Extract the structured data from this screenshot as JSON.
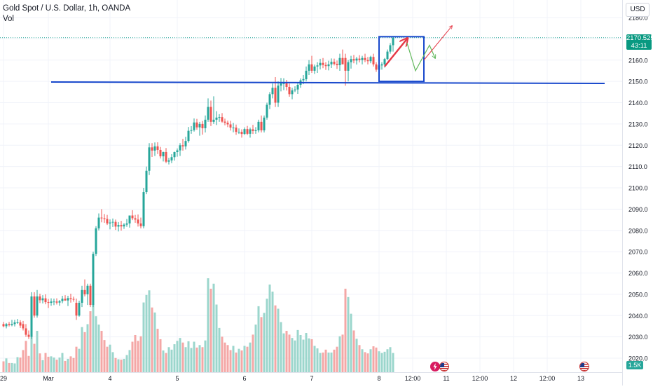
{
  "legend": {
    "title": "Gold Spot / U.S. Dollar, 1h, OANDA",
    "volume_label": "Vol"
  },
  "currency_button": "USD",
  "price_tag": {
    "price": "2170.525",
    "countdown": "43:11",
    "color": "#089981"
  },
  "volume_tag": "1.5K",
  "colors": {
    "up": "#26a69a",
    "down": "#ef5350",
    "vol_up": "#9bd6cc",
    "vol_down": "#f4a7a6",
    "support_line": "#1848cc",
    "box": "#1848cc",
    "arrow_up": "#e53946",
    "arrow_zigzag": "#63b95e",
    "grid": "#f0f3fa",
    "axis_text": "#131722"
  },
  "icons": {
    "event_1": "lightning-icon",
    "event_2": "us-flag-icon",
    "event_3": "us-flag-icon"
  },
  "chart_data": {
    "type": "candlestick",
    "symbol": "XAUUSD",
    "timeframe": "1h",
    "y_ticks": [
      2020,
      2030,
      2040,
      2050,
      2060,
      2070,
      2080,
      2090,
      2100,
      2110,
      2120,
      2130,
      2140,
      2150,
      2160,
      2170,
      2180
    ],
    "ylim": [
      2016,
      2182
    ],
    "x_ticks": [
      {
        "label": "29",
        "t": 0
      },
      {
        "label": "Mar",
        "t": 16
      },
      {
        "label": "4",
        "t": 38
      },
      {
        "label": "5",
        "t": 62
      },
      {
        "label": "6",
        "t": 86
      },
      {
        "label": "7",
        "t": 110
      },
      {
        "label": "8",
        "t": 134
      },
      {
        "label": "12:00",
        "t": 146
      },
      {
        "label": "11",
        "t": 158
      },
      {
        "label": "12:00",
        "t": 170
      },
      {
        "label": "12",
        "t": 182
      },
      {
        "label": "12:00",
        "t": 194
      },
      {
        "label": "13",
        "t": 206
      }
    ],
    "current_price": 2170.525,
    "support_level": 2150.0,
    "range_box": {
      "t_start": 134,
      "t_end": 150,
      "price_low": 2150.0,
      "price_high": 2171.0
    },
    "projection_arrows": {
      "up_arrow": [
        [
          136,
          2157
        ],
        [
          144,
          2170
        ]
      ],
      "target_arrow": [
        [
          150,
          2160
        ],
        [
          160,
          2176
        ]
      ],
      "zigzag": [
        [
          144,
          2168
        ],
        [
          147,
          2155
        ],
        [
          152,
          2167
        ],
        [
          154,
          2161
        ]
      ]
    },
    "candles": [
      [
        2036.0,
        2037.0,
        2034.5,
        2035.0,
        2.6
      ],
      [
        2035.0,
        2036.5,
        2034.0,
        2036.0,
        3.3
      ],
      [
        2036.0,
        2037.0,
        2034.9,
        2035.5,
        2.2
      ],
      [
        2035.5,
        2038.0,
        2035.0,
        2036.0,
        2.2
      ],
      [
        2036.0,
        2038.0,
        2034.9,
        2036.8,
        2.1
      ],
      [
        2036.8,
        2038.4,
        2036.1,
        2036.8,
        3.6
      ],
      [
        2036.8,
        2037.8,
        2034.2,
        2035.3,
        3.5
      ],
      [
        2036.0,
        2037.5,
        2033.0,
        2034.0,
        5.3
      ],
      [
        2034.0,
        2036.0,
        2030.0,
        2031.0,
        7.5
      ],
      [
        2031.0,
        2033.0,
        2029.0,
        2030.0,
        3.9
      ],
      [
        2030.0,
        2051.0,
        2029.0,
        2049.0,
        10.0
      ],
      [
        2049.0,
        2051.0,
        2039.0,
        2040.0,
        6.8
      ],
      [
        2040.0,
        2052.0,
        2039.0,
        2049.0,
        9.9
      ],
      [
        2049.0,
        2050.3,
        2045.9,
        2047.2,
        4.5
      ],
      [
        2047.2,
        2049.6,
        2045.7,
        2048.1,
        2.9
      ],
      [
        2048.1,
        2050.0,
        2045.3,
        2046.3,
        4.6
      ],
      [
        2046.3,
        2047.8,
        2043.6,
        2046.0,
        3.7
      ],
      [
        2046.0,
        2048.1,
        2044.6,
        2046.6,
        3.8
      ],
      [
        2046.6,
        2048.0,
        2044.9,
        2046.6,
        3.5
      ],
      [
        2046.6,
        2048.1,
        2045.2,
        2046.1,
        3.0
      ],
      [
        2046.1,
        2047.3,
        2044.6,
        2046.8,
        3.5
      ],
      [
        2046.8,
        2049.3,
        2045.8,
        2047.9,
        4.6
      ],
      [
        2047.9,
        2049.6,
        2046.9,
        2047.1,
        2.7
      ],
      [
        2047.1,
        2049.3,
        2044.5,
        2048.2,
        3.2
      ],
      [
        2048.2,
        2050.3,
        2046.1,
        2047.8,
        3.8
      ],
      [
        2047.8,
        2048.9,
        2046.5,
        2047.7,
        3.4
      ],
      [
        2046.0,
        2048.0,
        2038.0,
        2040.0,
        6.1
      ],
      [
        2040.0,
        2047.0,
        2039.5,
        2046.0,
        5.6
      ],
      [
        2046.0,
        2054.0,
        2044.0,
        2052.0,
        10.8
      ],
      [
        2052.0,
        2057.0,
        2049.0,
        2050.0,
        9.6
      ],
      [
        2050.0,
        2055.0,
        2045.0,
        2054.0,
        11.5
      ],
      [
        2054.0,
        2055.0,
        2044.0,
        2045.0,
        14.6
      ],
      [
        2045.0,
        2070.0,
        2044.0,
        2069.0,
        17.4
      ],
      [
        2069.0,
        2082.0,
        2068.0,
        2081.0,
        13.4
      ],
      [
        2081.0,
        2088.0,
        2080.0,
        2086.0,
        11.4
      ],
      [
        2086.0,
        2090.0,
        2083.8,
        2085.7,
        9.9
      ],
      [
        2085.7,
        2087.7,
        2083.6,
        2085.4,
        7.7
      ],
      [
        2085.4,
        2087.3,
        2082.5,
        2083.3,
        6.1
      ],
      [
        2083.3,
        2085.2,
        2080.5,
        2083.7,
        6.6
      ],
      [
        2083.7,
        2085.6,
        2081.6,
        2084.0,
        4.8
      ],
      [
        2084.0,
        2085.1,
        2080.2,
        2081.8,
        3.4
      ],
      [
        2081.8,
        2083.9,
        2079.5,
        2082.5,
        3.1
      ],
      [
        2082.5,
        2084.5,
        2079.9,
        2081.9,
        3.0
      ],
      [
        2081.9,
        2083.4,
        2080.7,
        2082.7,
        3.2
      ],
      [
        2082.7,
        2085.4,
        2081.7,
        2083.3,
        4.1
      ],
      [
        2083.3,
        2085.8,
        2081.3,
        2087.0,
        5.3
      ],
      [
        2087.0,
        2089.5,
        2084.8,
        2085.7,
        7.3
      ],
      [
        2085.7,
        2087.3,
        2083.6,
        2085.1,
        8.9
      ],
      [
        2085.1,
        2087.5,
        2081.8,
        2083.3,
        7.5
      ],
      [
        2083.3,
        2086.0,
        2081.0,
        2082.0,
        8.6
      ],
      [
        2082.0,
        2100.0,
        2081.0,
        2098.0,
        16.7
      ],
      [
        2098.0,
        2110.0,
        2097.0,
        2108.0,
        18.5
      ],
      [
        2108.0,
        2121.0,
        2106.0,
        2119.0,
        19.6
      ],
      [
        2119.0,
        2121.0,
        2114.5,
        2117.5,
        15.5
      ],
      [
        2117.5,
        2121.3,
        2115.0,
        2119.5,
        14.3
      ],
      [
        2119.5,
        2121.4,
        2115.9,
        2117.8,
        10.4
      ],
      [
        2117.8,
        2119.2,
        2113.8,
        2114.8,
        7.9
      ],
      [
        2114.8,
        2117.0,
        2112.4,
        2116.8,
        5.2
      ],
      [
        2116.8,
        2118.7,
        2111.6,
        2112.3,
        4.6
      ],
      [
        2112.3,
        2114.1,
        2111.0,
        2112.9,
        6.0
      ],
      [
        2112.9,
        2115.8,
        2111.6,
        2114.4,
        5.4
      ],
      [
        2114.4,
        2117.0,
        2112.8,
        2116.8,
        6.7
      ],
      [
        2116.8,
        2118.5,
        2114.6,
        2117.6,
        7.5
      ],
      [
        2117.6,
        2121.0,
        2115.0,
        2120.0,
        8.2
      ],
      [
        2120.0,
        2123.0,
        2117.5,
        2119.5,
        7.1
      ],
      [
        2119.5,
        2124.0,
        2118.0,
        2122.0,
        6.0
      ],
      [
        2122.0,
        2128.6,
        2121.2,
        2126.8,
        7.4
      ],
      [
        2126.8,
        2129.0,
        2125.4,
        2127.1,
        5.8
      ],
      [
        2127.1,
        2132.6,
        2126.4,
        2130.7,
        7.3
      ],
      [
        2130.7,
        2132.4,
        2127.3,
        2128.4,
        5.9
      ],
      [
        2128.4,
        2131.0,
        2124.5,
        2130.0,
        6.5
      ],
      [
        2130.0,
        2131.4,
        2125.0,
        2128.0,
        6.0
      ],
      [
        2128.0,
        2134.0,
        2126.0,
        2132.0,
        7.6
      ],
      [
        2132.0,
        2142.0,
        2131.0,
        2138.0,
        22.5
      ],
      [
        2138.0,
        2141.0,
        2129.0,
        2131.0,
        20.0
      ],
      [
        2131.0,
        2143.0,
        2130.0,
        2132.0,
        21.2
      ],
      [
        2132.0,
        2136.0,
        2129.5,
        2133.0,
        16.2
      ],
      [
        2133.0,
        2134.6,
        2131.0,
        2133.2,
        10.6
      ],
      [
        2133.2,
        2135.1,
        2130.6,
        2131.1,
        8.5
      ],
      [
        2131.1,
        2132.5,
        2129.4,
        2130.6,
        7.1
      ],
      [
        2130.6,
        2131.6,
        2128.5,
        2129.8,
        6.5
      ],
      [
        2129.8,
        2131.5,
        2126.9,
        2128.3,
        5.3
      ],
      [
        2128.3,
        2130.5,
        2126.1,
        2128.3,
        6.3
      ],
      [
        2128.3,
        2129.7,
        2124.9,
        2126.3,
        4.7
      ],
      [
        2126.3,
        2127.9,
        2125.3,
        2126.3,
        5.6
      ],
      [
        2126.3,
        2127.5,
        2123.6,
        2125.3,
        5.2
      ],
      [
        2125.3,
        2128.4,
        2124.9,
        2127.6,
        6.3
      ],
      [
        2127.6,
        2129.1,
        2124.8,
        2125.4,
        6.1
      ],
      [
        2125.4,
        2128.3,
        2123.6,
        2127.5,
        7.1
      ],
      [
        2127.5,
        2129.6,
        2125.3,
        2126.7,
        9.0
      ],
      [
        2126.7,
        2128.5,
        2125.4,
        2127.0,
        11.4
      ],
      [
        2127.0,
        2132.0,
        2126.0,
        2131.0,
        15.8
      ],
      [
        2131.0,
        2134.0,
        2126.0,
        2127.0,
        13.2
      ],
      [
        2127.0,
        2134.0,
        2126.0,
        2133.0,
        14.2
      ],
      [
        2133.0,
        2140.0,
        2132.0,
        2139.0,
        17.6
      ],
      [
        2139.0,
        2145.0,
        2137.0,
        2144.0,
        21.0
      ],
      [
        2144.0,
        2149.0,
        2142.0,
        2147.0,
        19.3
      ],
      [
        2147.0,
        2152.0,
        2138.0,
        2140.0,
        16.0
      ],
      [
        2140.0,
        2150.0,
        2138.0,
        2148.0,
        15.2
      ],
      [
        2148.0,
        2151.6,
        2145.3,
        2149.1,
        12.0
      ],
      [
        2149.1,
        2151.5,
        2145.9,
        2149.1,
        9.3
      ],
      [
        2149.1,
        2150.7,
        2145.7,
        2147.4,
        9.9
      ],
      [
        2147.4,
        2149.0,
        2142.8,
        2144.0,
        9.0
      ],
      [
        2144.0,
        2147.0,
        2141.6,
        2145.8,
        8.2
      ],
      [
        2145.8,
        2147.7,
        2145.0,
        2146.2,
        7.6
      ],
      [
        2146.2,
        2149.1,
        2144.1,
        2148.4,
        10.1
      ],
      [
        2148.4,
        2151.4,
        2147.0,
        2150.5,
        8.9
      ],
      [
        2150.5,
        2153.0,
        2148.7,
        2151.1,
        7.8
      ],
      [
        2151.0,
        2157.0,
        2150.0,
        2155.0,
        9.4
      ],
      [
        2155.0,
        2160.0,
        2153.0,
        2158.0,
        8.1
      ],
      [
        2158.0,
        2162.0,
        2154.0,
        2155.0,
        7.9
      ],
      [
        2155.0,
        2157.9,
        2153.5,
        2157.0,
        6.3
      ],
      [
        2157.0,
        2159.0,
        2154.0,
        2157.5,
        5.7
      ],
      [
        2157.5,
        2160.6,
        2155.6,
        2158.7,
        4.6
      ],
      [
        2158.7,
        2161.0,
        2156.2,
        2157.7,
        4.7
      ],
      [
        2157.7,
        2159.0,
        2155.4,
        2157.2,
        5.4
      ],
      [
        2157.2,
        2159.7,
        2155.2,
        2158.0,
        4.7
      ],
      [
        2158.0,
        2160.8,
        2156.3,
        2159.2,
        4.7
      ],
      [
        2159.2,
        2160.7,
        2157.5,
        2158.2,
        5.4
      ],
      [
        2158.2,
        2159.8,
        2155.9,
        2157.6,
        6.1
      ],
      [
        2157.6,
        2163.0,
        2155.0,
        2161.0,
        8.6
      ],
      [
        2161.0,
        2165.0,
        2159.0,
        2158.0,
        9.0
      ],
      [
        2161.0,
        2163.0,
        2148.0,
        2155.0,
        20.0
      ],
      [
        2155.0,
        2160.0,
        2150.0,
        2159.0,
        18.0
      ],
      [
        2159.0,
        2162.0,
        2156.0,
        2160.5,
        14.0
      ],
      [
        2160.5,
        2162.4,
        2158.5,
        2159.8,
        10.0
      ],
      [
        2159.8,
        2161.5,
        2157.9,
        2160.7,
        8.0
      ],
      [
        2160.7,
        2162.3,
        2158.9,
        2160.0,
        6.5
      ],
      [
        2160.0,
        2162.0,
        2158.0,
        2161.0,
        5.5
      ],
      [
        2161.0,
        2163.0,
        2159.0,
        2160.0,
        4.8
      ],
      [
        2160.0,
        2161.5,
        2158.0,
        2159.5,
        4.5
      ],
      [
        2159.5,
        2162.0,
        2158.5,
        2161.5,
        5.5
      ],
      [
        2161.5,
        2163.0,
        2157.0,
        2158.0,
        6.2
      ],
      [
        2158.0,
        2159.0,
        2154.5,
        2155.5,
        5.9
      ],
      [
        2155.5,
        2158.0,
        2154.5,
        2157.5,
        5.0
      ],
      [
        2157.5,
        2159.0,
        2155.5,
        2158.0,
        4.6
      ],
      [
        2158.0,
        2161.0,
        2156.5,
        2160.5,
        4.9
      ],
      [
        2160.5,
        2165.0,
        2160.0,
        2164.0,
        5.5
      ],
      [
        2164.0,
        2168.0,
        2163.0,
        2167.0,
        6.0
      ],
      [
        2167.0,
        2171.0,
        2164.0,
        2170.525,
        4.6
      ]
    ]
  }
}
